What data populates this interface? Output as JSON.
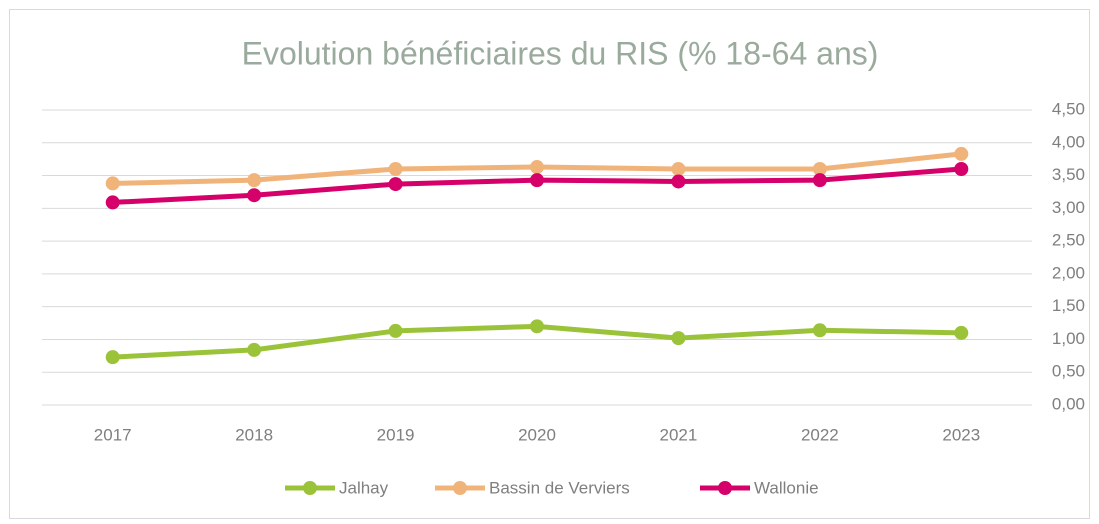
{
  "chart_data": {
    "type": "line",
    "title": "Evolution bénéficiaires du RIS (% 18-64 ans)",
    "categories": [
      "2017",
      "2018",
      "2019",
      "2020",
      "2021",
      "2022",
      "2023"
    ],
    "series": [
      {
        "name": "Jalhay",
        "color": "#9bc33a",
        "values": [
          0.73,
          0.84,
          1.13,
          1.2,
          1.02,
          1.14,
          1.1
        ]
      },
      {
        "name": "Bassin de Verviers",
        "color": "#f0b47a",
        "values": [
          3.38,
          3.43,
          3.6,
          3.63,
          3.6,
          3.6,
          3.83
        ]
      },
      {
        "name": "Wallonie",
        "color": "#d5006a",
        "values": [
          3.09,
          3.2,
          3.37,
          3.43,
          3.41,
          3.43,
          3.6
        ]
      }
    ],
    "ylim": [
      0,
      4.5
    ],
    "yticks": [
      {
        "value": 0,
        "label": "0,00"
      },
      {
        "value": 0.5,
        "label": "0,50"
      },
      {
        "value": 1,
        "label": "1,00"
      },
      {
        "value": 1.5,
        "label": "1,50"
      },
      {
        "value": 2,
        "label": "2,00"
      },
      {
        "value": 2.5,
        "label": "2,50"
      },
      {
        "value": 3,
        "label": "3,00"
      },
      {
        "value": 3.5,
        "label": "3,50"
      },
      {
        "value": 4,
        "label": "4,00"
      },
      {
        "value": 4.5,
        "label": "4,50"
      }
    ],
    "grid": true,
    "legend": "bottom"
  }
}
